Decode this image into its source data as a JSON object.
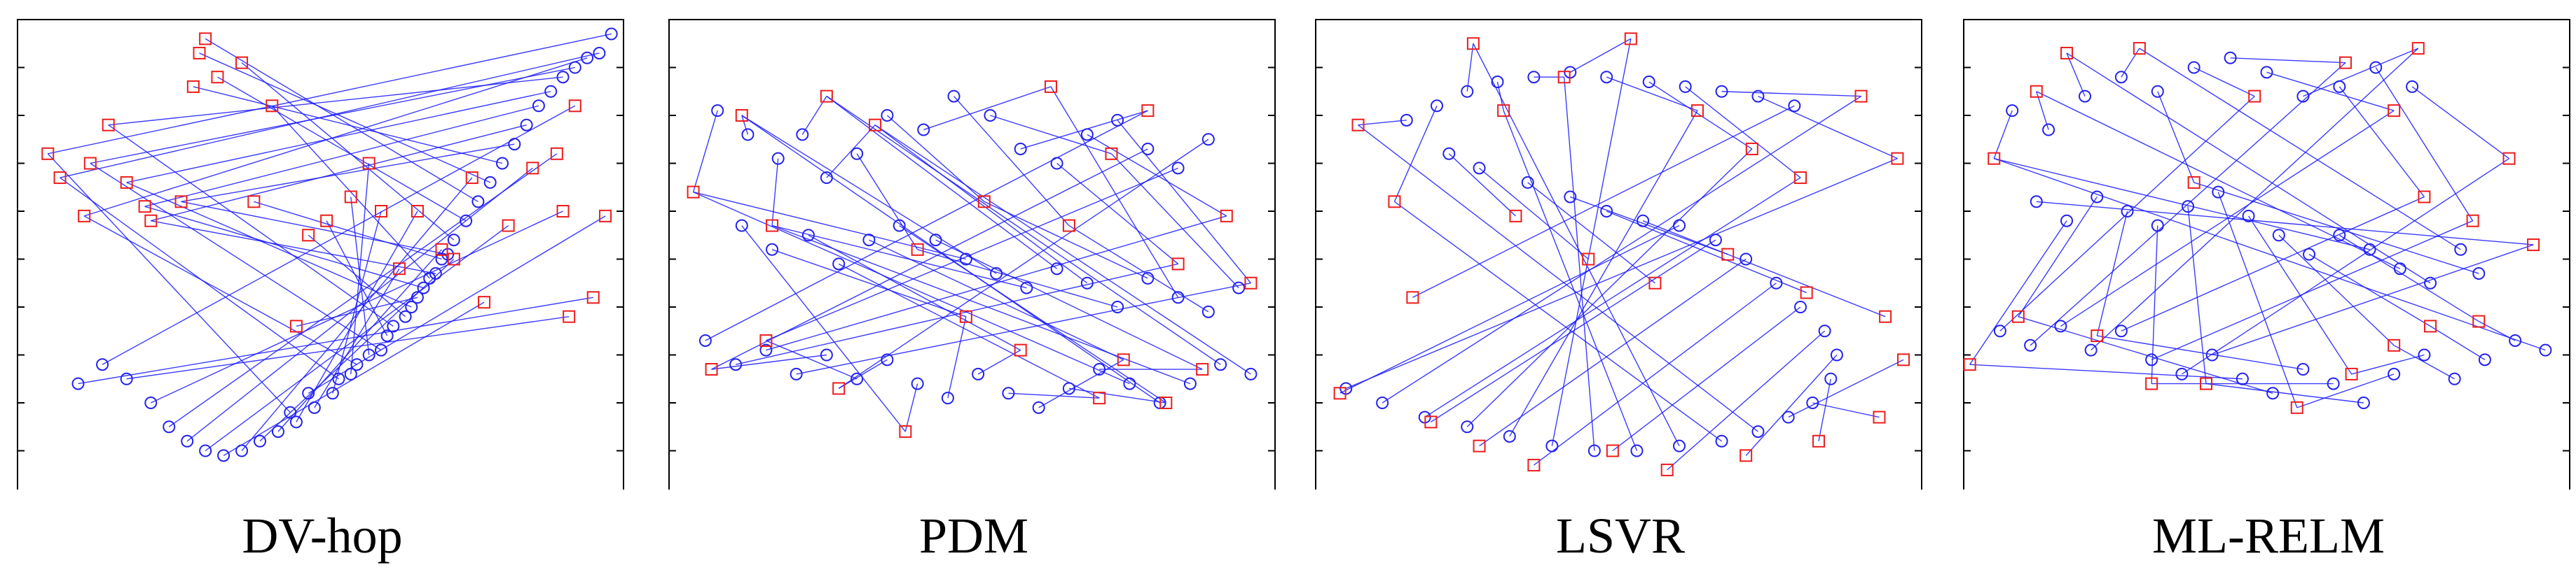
{
  "colors": {
    "link": "#1a1aff",
    "estimate": "#2222ee",
    "anchor": "#ee1c1c",
    "frame": "#000000"
  },
  "chart_data": [
    {
      "type": "scatter",
      "title": "DV-hop",
      "xlim": [
        0,
        100
      ],
      "ylim": [
        0,
        100
      ],
      "anchors": [
        [
          5,
          72
        ],
        [
          7,
          67
        ],
        [
          11,
          59
        ],
        [
          12,
          70
        ],
        [
          15,
          78
        ],
        [
          18,
          66
        ],
        [
          21,
          61
        ],
        [
          22,
          58
        ],
        [
          27,
          62
        ],
        [
          29,
          86
        ],
        [
          30,
          93
        ],
        [
          31,
          96
        ],
        [
          33,
          88
        ],
        [
          37,
          91
        ],
        [
          39,
          62
        ],
        [
          42,
          82
        ],
        [
          46,
          36
        ],
        [
          48,
          55
        ],
        [
          51,
          58
        ],
        [
          55,
          63
        ],
        [
          58,
          70
        ],
        [
          60,
          60
        ],
        [
          63,
          48
        ],
        [
          66,
          60
        ],
        [
          70,
          52
        ],
        [
          72,
          50
        ],
        [
          75,
          67
        ],
        [
          77,
          41
        ],
        [
          81,
          57
        ],
        [
          85,
          69
        ],
        [
          89,
          72
        ],
        [
          90,
          60
        ],
        [
          91,
          38
        ],
        [
          92,
          82
        ],
        [
          95,
          42
        ],
        [
          97,
          59
        ]
      ],
      "estimates": [
        [
          98,
          97
        ],
        [
          96,
          93
        ],
        [
          94,
          92
        ],
        [
          92,
          90
        ],
        [
          90,
          88
        ],
        [
          88,
          85
        ],
        [
          86,
          82
        ],
        [
          84,
          78
        ],
        [
          82,
          74
        ],
        [
          80,
          70
        ],
        [
          78,
          66
        ],
        [
          76,
          62
        ],
        [
          74,
          58
        ],
        [
          72,
          54
        ],
        [
          70,
          50
        ],
        [
          68,
          46
        ],
        [
          66,
          42
        ],
        [
          64,
          38
        ],
        [
          61,
          34
        ],
        [
          58,
          30
        ],
        [
          55,
          26
        ],
        [
          52,
          22
        ],
        [
          49,
          19
        ],
        [
          46,
          16
        ],
        [
          43,
          14
        ],
        [
          40,
          12
        ],
        [
          37,
          10
        ],
        [
          34,
          9
        ],
        [
          31,
          10
        ],
        [
          28,
          12
        ],
        [
          25,
          15
        ],
        [
          22,
          20
        ],
        [
          18,
          25
        ],
        [
          14,
          28
        ],
        [
          10,
          24
        ],
        [
          48,
          22
        ],
        [
          45,
          18
        ],
        [
          53,
          25
        ],
        [
          56,
          28
        ],
        [
          60,
          31
        ],
        [
          62,
          36
        ],
        [
          65,
          40
        ],
        [
          67,
          44
        ],
        [
          69,
          47
        ],
        [
          71,
          51
        ]
      ]
    },
    {
      "type": "scatter",
      "title": "PDM",
      "xlim": [
        0,
        100
      ],
      "ylim": [
        0,
        100
      ],
      "anchors": [
        [
          4,
          64
        ],
        [
          12,
          80
        ],
        [
          17,
          57
        ],
        [
          26,
          84
        ],
        [
          34,
          78
        ],
        [
          41,
          52
        ],
        [
          52,
          62
        ],
        [
          63,
          86
        ],
        [
          66,
          57
        ],
        [
          73,
          72
        ],
        [
          79,
          81
        ],
        [
          84,
          49
        ],
        [
          92,
          59
        ],
        [
          96,
          45
        ],
        [
          7,
          27
        ],
        [
          16,
          33
        ],
        [
          28,
          23
        ],
        [
          39,
          14
        ],
        [
          49,
          38
        ],
        [
          58,
          31
        ],
        [
          71,
          21
        ],
        [
          75,
          29
        ],
        [
          82,
          20
        ],
        [
          88,
          27
        ]
      ],
      "estimates": [
        [
          8,
          81
        ],
        [
          13,
          76
        ],
        [
          18,
          71
        ],
        [
          22,
          76
        ],
        [
          26,
          67
        ],
        [
          31,
          72
        ],
        [
          36,
          80
        ],
        [
          42,
          77
        ],
        [
          47,
          84
        ],
        [
          53,
          80
        ],
        [
          58,
          73
        ],
        [
          64,
          70
        ],
        [
          69,
          76
        ],
        [
          74,
          79
        ],
        [
          79,
          73
        ],
        [
          84,
          69
        ],
        [
          89,
          75
        ],
        [
          12,
          57
        ],
        [
          17,
          52
        ],
        [
          23,
          55
        ],
        [
          28,
          49
        ],
        [
          33,
          54
        ],
        [
          38,
          57
        ],
        [
          44,
          54
        ],
        [
          49,
          50
        ],
        [
          54,
          47
        ],
        [
          59,
          44
        ],
        [
          64,
          48
        ],
        [
          69,
          45
        ],
        [
          74,
          40
        ],
        [
          79,
          46
        ],
        [
          84,
          42
        ],
        [
          89,
          39
        ],
        [
          94,
          44
        ],
        [
          6,
          33
        ],
        [
          11,
          28
        ],
        [
          16,
          31
        ],
        [
          21,
          26
        ],
        [
          26,
          30
        ],
        [
          31,
          25
        ],
        [
          36,
          29
        ],
        [
          41,
          24
        ],
        [
          46,
          21
        ],
        [
          51,
          26
        ],
        [
          56,
          22
        ],
        [
          61,
          19
        ],
        [
          66,
          23
        ],
        [
          71,
          27
        ],
        [
          76,
          24
        ],
        [
          81,
          20
        ],
        [
          86,
          24
        ],
        [
          91,
          28
        ],
        [
          96,
          26
        ]
      ]
    },
    {
      "type": "scatter",
      "title": "LSVR",
      "xlim": [
        0,
        100
      ],
      "ylim": [
        0,
        100
      ],
      "anchors": [
        [
          7,
          78
        ],
        [
          13,
          62
        ],
        [
          26,
          95
        ],
        [
          31,
          81
        ],
        [
          41,
          88
        ],
        [
          52,
          96
        ],
        [
          63,
          81
        ],
        [
          72,
          73
        ],
        [
          80,
          67
        ],
        [
          90,
          84
        ],
        [
          96,
          71
        ],
        [
          16,
          42
        ],
        [
          33,
          59
        ],
        [
          45,
          50
        ],
        [
          56,
          45
        ],
        [
          68,
          51
        ],
        [
          81,
          43
        ],
        [
          94,
          38
        ],
        [
          4,
          22
        ],
        [
          19,
          16
        ],
        [
          27,
          11
        ],
        [
          36,
          7
        ],
        [
          49,
          10
        ],
        [
          58,
          6
        ],
        [
          71,
          9
        ],
        [
          83,
          12
        ],
        [
          93,
          17
        ],
        [
          97,
          29
        ]
      ],
      "estimates": [
        [
          15,
          79
        ],
        [
          20,
          82
        ],
        [
          25,
          85
        ],
        [
          30,
          87
        ],
        [
          36,
          88
        ],
        [
          42,
          89
        ],
        [
          48,
          88
        ],
        [
          55,
          87
        ],
        [
          61,
          86
        ],
        [
          67,
          85
        ],
        [
          73,
          84
        ],
        [
          79,
          82
        ],
        [
          22,
          72
        ],
        [
          27,
          69
        ],
        [
          35,
          66
        ],
        [
          42,
          63
        ],
        [
          48,
          60
        ],
        [
          54,
          58
        ],
        [
          60,
          57
        ],
        [
          66,
          54
        ],
        [
          71,
          50
        ],
        [
          76,
          45
        ],
        [
          80,
          40
        ],
        [
          84,
          35
        ],
        [
          86,
          30
        ],
        [
          85,
          25
        ],
        [
          82,
          20
        ],
        [
          78,
          17
        ],
        [
          73,
          14
        ],
        [
          67,
          12
        ],
        [
          60,
          11
        ],
        [
          53,
          10
        ],
        [
          46,
          10
        ],
        [
          39,
          11
        ],
        [
          32,
          13
        ],
        [
          25,
          15
        ],
        [
          18,
          17
        ],
        [
          11,
          20
        ],
        [
          5,
          23
        ]
      ]
    },
    {
      "type": "scatter",
      "title": "ML-RELM",
      "xlim": [
        0,
        100
      ],
      "ylim": [
        0,
        100
      ],
      "anchors": [
        [
          5,
          71
        ],
        [
          12,
          85
        ],
        [
          17,
          93
        ],
        [
          29,
          94
        ],
        [
          38,
          66
        ],
        [
          48,
          84
        ],
        [
          63,
          91
        ],
        [
          71,
          81
        ],
        [
          75,
          94
        ],
        [
          76,
          63
        ],
        [
          84,
          58
        ],
        [
          90,
          71
        ],
        [
          94,
          53
        ],
        [
          1,
          28
        ],
        [
          9,
          38
        ],
        [
          22,
          34
        ],
        [
          31,
          24
        ],
        [
          40,
          24
        ],
        [
          55,
          19
        ],
        [
          64,
          26
        ],
        [
          71,
          32
        ],
        [
          77,
          36
        ],
        [
          85,
          37
        ]
      ],
      "estimates": [
        [
          8,
          81
        ],
        [
          14,
          77
        ],
        [
          20,
          84
        ],
        [
          26,
          88
        ],
        [
          32,
          85
        ],
        [
          38,
          90
        ],
        [
          44,
          92
        ],
        [
          50,
          89
        ],
        [
          56,
          84
        ],
        [
          62,
          86
        ],
        [
          68,
          90
        ],
        [
          74,
          86
        ],
        [
          12,
          62
        ],
        [
          17,
          58
        ],
        [
          22,
          63
        ],
        [
          27,
          60
        ],
        [
          32,
          57
        ],
        [
          37,
          61
        ],
        [
          42,
          64
        ],
        [
          47,
          59
        ],
        [
          52,
          55
        ],
        [
          57,
          51
        ],
        [
          62,
          55
        ],
        [
          67,
          52
        ],
        [
          72,
          48
        ],
        [
          77,
          45
        ],
        [
          82,
          52
        ],
        [
          85,
          47
        ],
        [
          6,
          35
        ],
        [
          11,
          32
        ],
        [
          16,
          36
        ],
        [
          21,
          31
        ],
        [
          26,
          35
        ],
        [
          31,
          29
        ],
        [
          36,
          26
        ],
        [
          41,
          30
        ],
        [
          46,
          25
        ],
        [
          51,
          22
        ],
        [
          56,
          27
        ],
        [
          61,
          24
        ],
        [
          66,
          20
        ],
        [
          71,
          26
        ],
        [
          76,
          30
        ],
        [
          81,
          25
        ],
        [
          86,
          29
        ],
        [
          91,
          33
        ],
        [
          96,
          31
        ]
      ]
    }
  ]
}
